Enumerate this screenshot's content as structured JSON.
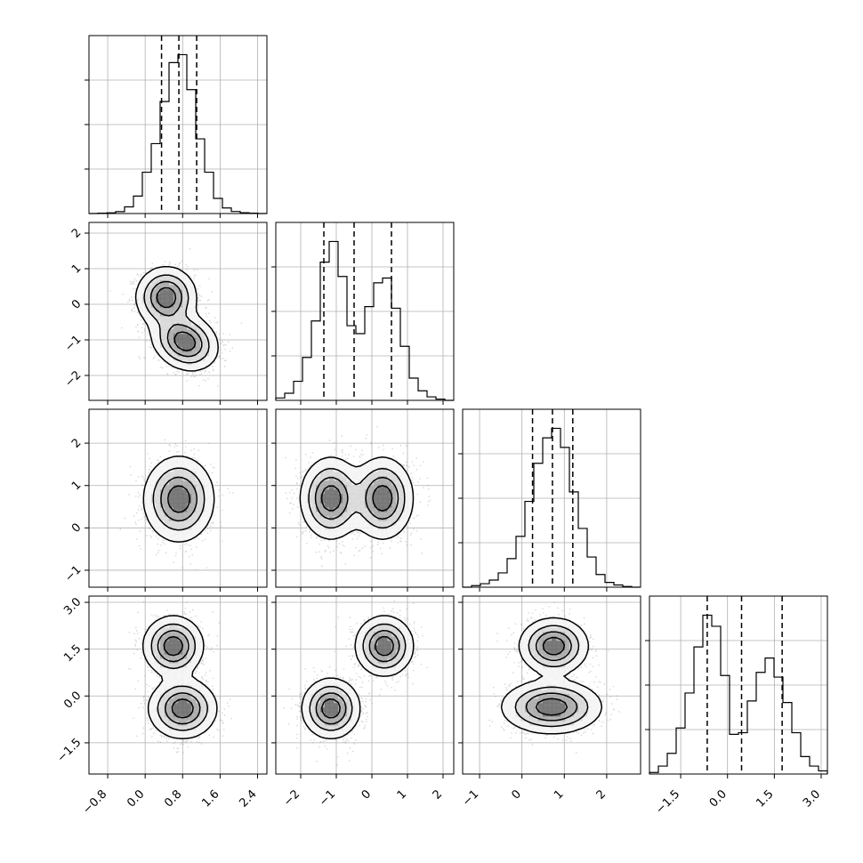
{
  "chart_data": {
    "type": "corner",
    "parameters": [
      "",
      "",
      "",
      ""
    ],
    "grid": true,
    "histogram_style": "step",
    "quantile_lines": "dashed",
    "axes": [
      {
        "range": [
          -1.2,
          2.6
        ],
        "ticks": [
          -0.8,
          0.0,
          0.8,
          1.6,
          2.4
        ],
        "tick_labels": [
          "−0.8",
          "0.0",
          "0.8",
          "1.6",
          "2.4"
        ]
      },
      {
        "range": [
          -2.7,
          2.3
        ],
        "ticks": [
          -2,
          -1,
          0,
          1,
          2
        ],
        "tick_labels": [
          "−2",
          "−1",
          "0",
          "1",
          "2"
        ]
      },
      {
        "range": [
          -1.4,
          2.8
        ],
        "ticks": [
          -1,
          0,
          1,
          2
        ],
        "tick_labels": [
          "−1",
          "0",
          "1",
          "2"
        ]
      },
      {
        "range": [
          -2.5,
          3.2
        ],
        "ticks": [
          -1.5,
          0.0,
          1.5,
          3.0
        ],
        "tick_labels": [
          "−1.5",
          "0.0",
          "1.5",
          "3.0"
        ]
      }
    ],
    "histograms": [
      {
        "param": 0,
        "quantiles": [
          0.35,
          0.72,
          1.1
        ],
        "bin_edges": [
          -1.2,
          -1.01,
          -0.82,
          -0.63,
          -0.44,
          -0.25,
          -0.06,
          0.13,
          0.32,
          0.51,
          0.7,
          0.89,
          1.08,
          1.27,
          1.46,
          1.65,
          1.84,
          2.03,
          2.22,
          2.41,
          2.6
        ],
        "counts": [
          0,
          2,
          4,
          12,
          42,
          110,
          260,
          440,
          705,
          950,
          1000,
          780,
          470,
          260,
          95,
          35,
          13,
          5,
          2,
          0
        ]
      },
      {
        "param": 1,
        "quantiles": [
          -1.35,
          -0.5,
          0.55
        ],
        "bin_edges": [
          -2.7,
          -2.45,
          -2.2,
          -1.95,
          -1.7,
          -1.45,
          -1.2,
          -0.95,
          -0.7,
          -0.45,
          -0.2,
          0.05,
          0.3,
          0.55,
          0.8,
          1.05,
          1.3,
          1.55,
          1.8,
          2.05,
          2.3
        ],
        "counts": [
          15,
          45,
          120,
          270,
          500,
          870,
          1000,
          780,
          470,
          420,
          590,
          740,
          770,
          580,
          340,
          140,
          60,
          22,
          8,
          0
        ]
      },
      {
        "param": 2,
        "quantiles": [
          0.25,
          0.72,
          1.2
        ],
        "bin_edges": [
          -1.4,
          -1.19,
          -0.98,
          -0.77,
          -0.56,
          -0.35,
          -0.14,
          0.07,
          0.28,
          0.49,
          0.7,
          0.91,
          1.12,
          1.33,
          1.54,
          1.75,
          1.96,
          2.17,
          2.38,
          2.59,
          2.8
        ],
        "counts": [
          0,
          10,
          22,
          45,
          90,
          180,
          320,
          540,
          780,
          940,
          1000,
          880,
          600,
          370,
          190,
          80,
          30,
          14,
          4,
          0
        ]
      },
      {
        "param": 3,
        "quantiles": [
          -0.65,
          0.45,
          1.75
        ],
        "bin_edges": [
          -2.5,
          -2.215,
          -1.93,
          -1.645,
          -1.36,
          -1.075,
          -0.79,
          -0.505,
          -0.22,
          0.065,
          0.35,
          0.635,
          0.92,
          1.205,
          1.49,
          1.775,
          2.06,
          2.345,
          2.63,
          2.915,
          3.2
        ],
        "counts": [
          10,
          50,
          130,
          290,
          510,
          800,
          1000,
          930,
          620,
          250,
          260,
          460,
          640,
          730,
          610,
          450,
          260,
          110,
          50,
          20
        ]
      }
    ],
    "pairs": [
      {
        "x": 0,
        "y": 1,
        "modes": [
          {
            "cx": 0.45,
            "cy": 0.2,
            "sx": 0.3,
            "sy": 0.4,
            "r": 0.0
          },
          {
            "cx": 0.85,
            "cy": -1.05,
            "sx": 0.33,
            "sy": 0.38,
            "r": -0.2
          }
        ]
      },
      {
        "x": 0,
        "y": 2,
        "modes": [
          {
            "cx": 0.72,
            "cy": 0.68,
            "sx": 0.35,
            "sy": 0.47,
            "r": 0.0
          }
        ]
      },
      {
        "x": 1,
        "y": 2,
        "modes": [
          {
            "cx": -1.15,
            "cy": 0.7,
            "sx": 0.4,
            "sy": 0.45,
            "r": 0.0
          },
          {
            "cx": 0.3,
            "cy": 0.7,
            "sx": 0.4,
            "sy": 0.45,
            "r": 0.0
          }
        ]
      },
      {
        "x": 0,
        "y": 3,
        "modes": [
          {
            "cx": 0.6,
            "cy": 1.6,
            "sx": 0.3,
            "sy": 0.45,
            "r": 0.0
          },
          {
            "cx": 0.8,
            "cy": -0.4,
            "sx": 0.34,
            "sy": 0.45,
            "r": 0.0
          }
        ]
      },
      {
        "x": 1,
        "y": 3,
        "modes": [
          {
            "cx": -1.15,
            "cy": -0.4,
            "sx": 0.38,
            "sy": 0.45,
            "r": 0.0
          },
          {
            "cx": 0.35,
            "cy": 1.6,
            "sx": 0.38,
            "sy": 0.45,
            "r": 0.0
          }
        ]
      },
      {
        "x": 2,
        "y": 3,
        "modes": [
          {
            "cx": 0.75,
            "cy": 1.6,
            "sx": 0.38,
            "sy": 0.42,
            "r": 0.0
          },
          {
            "cx": 0.7,
            "cy": -0.35,
            "sx": 0.55,
            "sy": 0.4,
            "r": 0.0
          }
        ]
      }
    ]
  }
}
